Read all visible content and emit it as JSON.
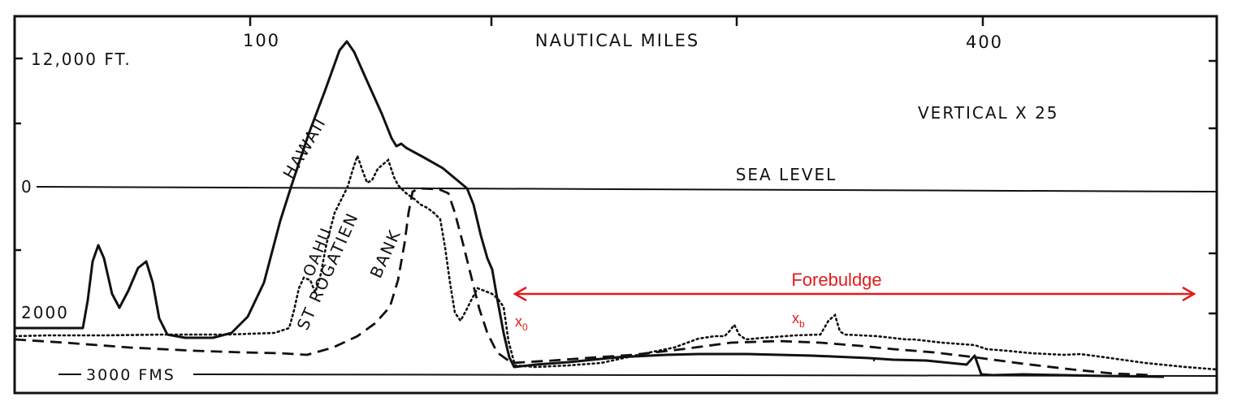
{
  "top_axis": {
    "title": "NAUTICAL MILES",
    "tick_100": "100",
    "tick_400": "400"
  },
  "left_axis": {
    "top_label": "12,000 FT.",
    "zero_label": "0",
    "mid_label": "2000",
    "bottom_label": "3000 FMS"
  },
  "annotations": {
    "vertical_exaggeration": "VERTICAL X 25",
    "sea_level": "SEA LEVEL",
    "hawaii": "HAWAII",
    "oahu": "OAHU",
    "st_rogatien": "ST ROGATIEN",
    "bank": "BANK"
  },
  "overlay": {
    "forebuldge": "Forebuldge",
    "x0_base": "x",
    "x0_sub": "0",
    "xb_base": "x",
    "xb_sub": "b",
    "color": "#e31b1b"
  },
  "colors": {
    "ink": "#111111",
    "background": "#ffffff"
  }
}
